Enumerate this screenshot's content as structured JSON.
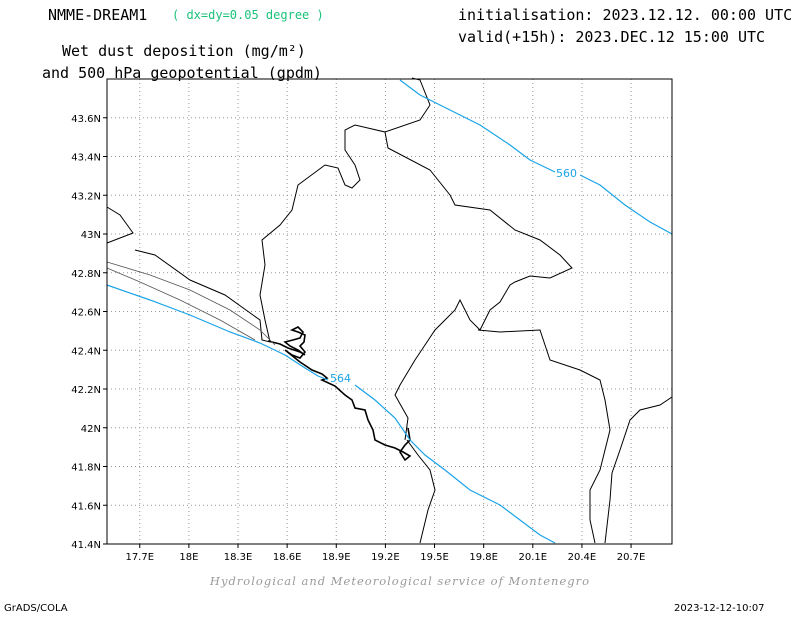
{
  "header": {
    "model_name": "NMME-DREAM1",
    "model_resolution": "( dx=dy=0.05 degree )",
    "initialisation": "initialisation: 2023.12.12. 00:00 UTC",
    "valid": "valid(+15h): 2023.DEC.12 15:00 UTC",
    "title_line1": "Wet dust deposition (mg/m²)",
    "title_line2": "and 500 hPa geopotential (gpdm)"
  },
  "map": {
    "lon_range": [
      17.5,
      20.95
    ],
    "lat_range": [
      41.4,
      43.8
    ],
    "x_ticks": [
      "17.7E",
      "18E",
      "18.3E",
      "18.6E",
      "18.9E",
      "19.2E",
      "19.5E",
      "19.8E",
      "20.1E",
      "20.4E",
      "20.7E"
    ],
    "y_ticks": [
      "41.4N",
      "41.6N",
      "41.8N",
      "42N",
      "42.2N",
      "42.4N",
      "42.6N",
      "42.8N",
      "43N",
      "43.2N",
      "43.4N",
      "43.6N"
    ],
    "grid": "dotted",
    "contours": [
      {
        "label": "560",
        "color": "#1aa3e8"
      },
      {
        "label": "564",
        "color": "#1aa3e8"
      }
    ]
  },
  "credit": "Hydrological and Meteorological service of Montenegro",
  "footer": {
    "left": "GrADS/COLA",
    "right": "2023-12-12-10:07"
  }
}
